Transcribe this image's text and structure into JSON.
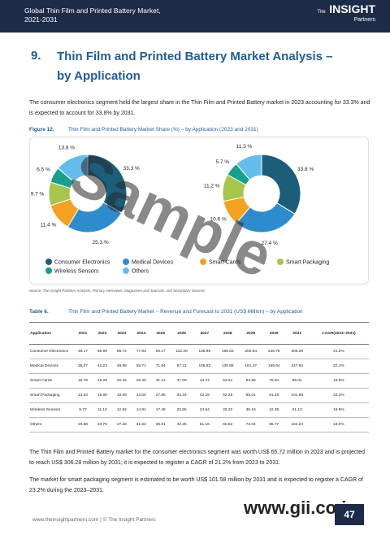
{
  "header": {
    "title": "Global Thin Film and Printed Battery Market,",
    "subtitle": "2021-2031",
    "logo_small": "The",
    "logo_main": "INSIGHT",
    "logo_sub": "Partners"
  },
  "section": {
    "number": "9.",
    "title": "Thin Film and Printed Battery Market Analysis – by Application"
  },
  "intro": "The consumer electronics segment held the largest share in the Thin Film and Printed Battery market in 2023 accounting for 33.3% and is expected to account for 33.8% by 2031.",
  "figure": {
    "number": "Figure 12.",
    "caption": "Thin Film and Printed Battery Market Share (%) – by Application (2023 and 2031)",
    "charts": [
      {
        "type": "donut",
        "values": [
          33.3,
          25.3,
          11.4,
          9.7,
          6.5,
          13.8
        ],
        "value_labels": [
          "33.3 %",
          "25.3 %",
          "11.4 %",
          "9.7 %",
          "6.5 %",
          "13.8 %"
        ]
      },
      {
        "type": "donut",
        "values": [
          33.8,
          27.4,
          10.6,
          11.2,
          5.7,
          11.3
        ],
        "value_labels": [
          "33.8 %",
          "27.4 %",
          "10.6 %",
          "11.2 %",
          "5.7 %",
          "11.3 %"
        ]
      }
    ],
    "legend": [
      {
        "name": "Consumer Electronics",
        "color": "#1c5d7a"
      },
      {
        "name": "Medical Devices",
        "color": "#2f8ccc"
      },
      {
        "name": "Smart Cards",
        "color": "#f4a21f"
      },
      {
        "name": "Smart Packaging",
        "color": "#a6c64c"
      },
      {
        "name": "Wireless Sensors",
        "color": "#18a08c"
      },
      {
        "name": "Others",
        "color": "#63bde8"
      }
    ],
    "source": "Source: The Insight Partners Analysis, Primary Interviews, Magazines and Journals, and Secondary Sources"
  },
  "table": {
    "number": "Table 6.",
    "caption": "Thin Film and Printed Battery Market – Revenue and Forecast to 2031 (US$ Million) – by Application",
    "header": [
      "Application",
      "2021",
      "2022",
      "2023",
      "2024",
      "2025",
      "2026",
      "2027",
      "2028",
      "2029",
      "2030",
      "2031",
      "CAGR(2023–2031)"
    ],
    "rows": [
      [
        "Consumer Electronics",
        "48.17",
        "55.96",
        "65.72",
        "77.93",
        "93.17",
        "112.20",
        "135.96",
        "165.63",
        "202.64",
        "248.79",
        "306.28",
        "21.2%"
      ],
      [
        "Medical Devices",
        "36.07",
        "42.23",
        "49.98",
        "59.71",
        "71.94",
        "87.31",
        "106.62",
        "130.88",
        "161.37",
        "199.64",
        "247.66",
        "22.1%"
      ],
      [
        "Smart Cards",
        "16.78",
        "19.29",
        "22.42",
        "26.30",
        "31.12",
        "37.09",
        "44.47",
        "53.61",
        "64.90",
        "78.84",
        "96.04",
        "19.9%"
      ],
      [
        "Smart Packaging",
        "13.53",
        "15.98",
        "19.08",
        "23.00",
        "27.96",
        "34.24",
        "42.19",
        "52.26",
        "65.01",
        "81.15",
        "101.58",
        "23.2%"
      ],
      [
        "Wireless Sensors",
        "9.77",
        "11.13",
        "12.82",
        "14.91",
        "17.48",
        "20.65",
        "24.54",
        "29.32",
        "35.16",
        "42.35",
        "51.13",
        "18.9%"
      ],
      [
        "Others",
        "20.88",
        "23.75",
        "27.29",
        "31.62",
        "36.91",
        "43.35",
        "51.16",
        "60.62",
        "72.04",
        "85.77",
        "102.24",
        "18.0%"
      ]
    ]
  },
  "paragraphs": [
    "The Thin Film and Printed Battery market for the consumer electronics segment was worth US$ 65.72 million in 2023 and is projected to reach US$ 306.28 million by 2031; it is expected to register a CAGR of 21.2% from 2023 to 2031.",
    "The market for smart packaging segment is estimated to be worth US$ 101.58 million by 2031 and is expected to register a CAGR of 23.2% during the 2023–2031."
  ],
  "watermarks": [
    "Sample",
    "www.gii.co.jp"
  ],
  "footer": {
    "website": "www.theinsightpartners.com",
    "separator": "|",
    "copyright": "© The Insight Partners",
    "page": "47"
  }
}
